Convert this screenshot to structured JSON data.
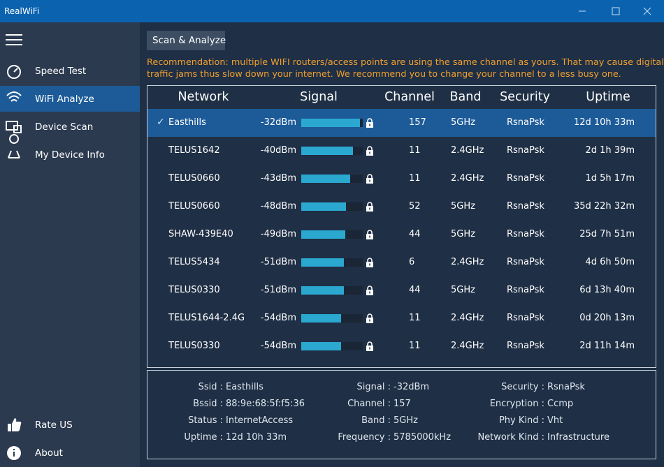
{
  "window": {
    "title": "RealWiFi"
  },
  "sidebar": {
    "items": [
      "Speed Test",
      "WiFi Analyze",
      "Device Scan",
      "My Device Info"
    ],
    "bottom": [
      "Rate US",
      "About"
    ]
  },
  "toolbar": {
    "button": "Scan & Analyze"
  },
  "recommendation": [
    "Recommendation: multiple WIFI routers/access points are using the same channel as yours. That may cause digital",
    "traffic jams thus slow down your internet. We recommend you to change your channel to a less busy one."
  ],
  "table": {
    "headers": [
      "Network",
      "Signal",
      "Channel",
      "Band",
      "Security",
      "Uptime"
    ],
    "rows": [
      [
        "Easthills",
        "-32dBm",
        "157",
        "5GHz",
        "RsnaPsk",
        "12d 10h 33m"
      ],
      [
        "TELUS1642",
        "-40dBm",
        "11",
        "2.4GHz",
        "RsnaPsk",
        "2d 1h 39m"
      ],
      [
        "TELUS0660",
        "-43dBm",
        "11",
        "2.4GHz",
        "RsnaPsk",
        "1d 5h 17m"
      ],
      [
        "TELUS0660",
        "-48dBm",
        "52",
        "5GHz",
        "RsnaPsk",
        "35d 22h 32m"
      ],
      [
        "SHAW-439E40",
        "-49dBm",
        "44",
        "5GHz",
        "RsnaPsk",
        "25d 7h 51m"
      ],
      [
        "TELUS5434",
        "-51dBm",
        "6",
        "2.4GHz",
        "RsnaPsk",
        "4d 6h 50m"
      ],
      [
        "TELUS0330",
        "-51dBm",
        "44",
        "5GHz",
        "RsnaPsk",
        "6d 13h 40m"
      ],
      [
        "TELUS1644-2.4G",
        "-54dBm",
        "11",
        "2.4GHz",
        "RsnaPsk",
        "0d 20h 13m"
      ],
      [
        "TELUS0330",
        "-54dBm",
        "11",
        "2.4GHz",
        "RsnaPsk",
        "2d 11h 14m"
      ]
    ]
  },
  "details": [
    [
      [
        "Ssid :",
        "Easthills"
      ],
      [
        "Bssid :",
        "88:9e:68:5f:f5:36"
      ],
      [
        "Status :",
        "InternetAccess"
      ],
      [
        "Uptime :",
        "12d 10h 33m"
      ]
    ],
    [
      [
        "Signal :",
        "-32dBm"
      ],
      [
        "Channel :",
        "157"
      ],
      [
        "Band :",
        "5GHz"
      ],
      [
        "Frequency :",
        "5785000kHz"
      ]
    ],
    [
      [
        "Security :",
        "RsnaPsk"
      ],
      [
        "Encryption :",
        "Ccmp"
      ],
      [
        "Phy Kind :",
        "Vht"
      ],
      [
        "Network Kind :",
        "Infrastructure"
      ]
    ]
  ]
}
